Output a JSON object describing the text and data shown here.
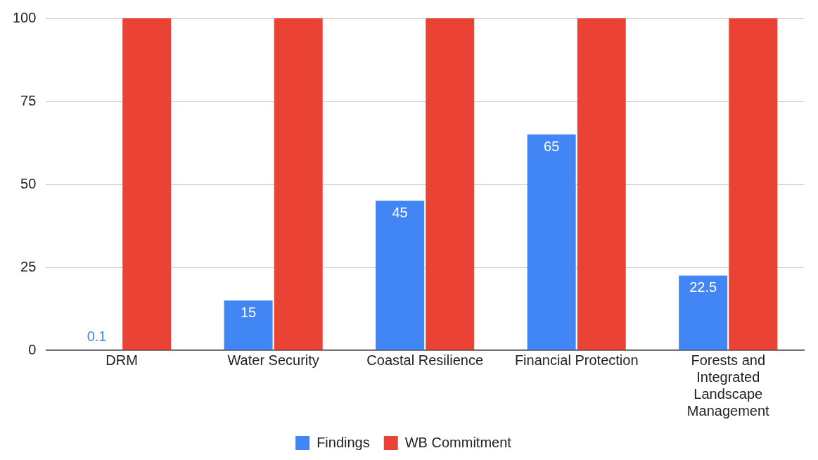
{
  "chart_data": {
    "type": "bar",
    "categories": [
      "DRM",
      "Water Security",
      "Coastal Resilience",
      "Financial Protection",
      "Forests and Integrated Landscape Management"
    ],
    "series": [
      {
        "name": "Findings",
        "color": "#4285f4",
        "values": [
          0.1,
          15,
          45,
          65,
          22.5
        ],
        "value_labels": [
          "0.1",
          "15",
          "45",
          "65",
          "22.5"
        ]
      },
      {
        "name": "WB Commitment",
        "color": "#ea4335",
        "values": [
          100,
          100,
          100,
          100,
          100
        ]
      }
    ],
    "ylim": [
      0,
      100
    ],
    "yticks": [
      0,
      25,
      50,
      75,
      100
    ],
    "grid": "y",
    "legend": "bottom"
  }
}
